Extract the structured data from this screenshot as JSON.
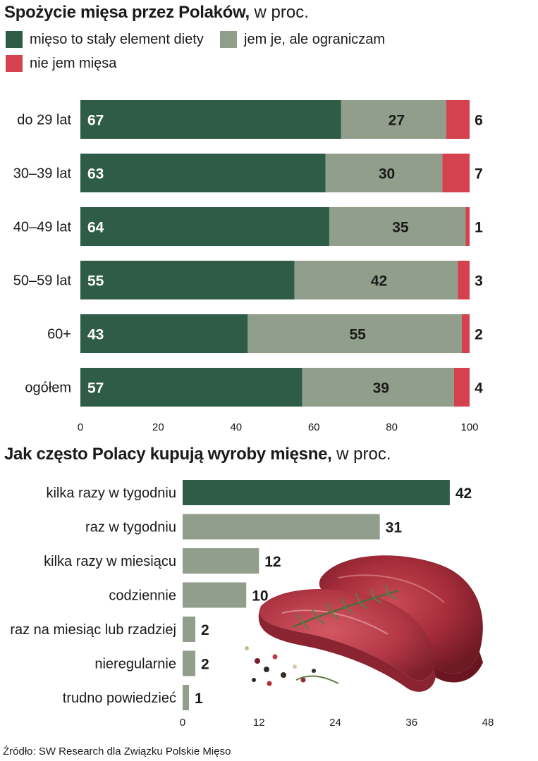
{
  "chart1": {
    "title_bold": "Spożycie mięsa przez Polaków,",
    "title_light": " w proc.",
    "legend": [
      {
        "label": "mięso to stały element diety",
        "color": "#2f5c47"
      },
      {
        "label": "jem je, ale ograniczam",
        "color": "#909e8b"
      },
      {
        "label": "nie jem mięsa",
        "color": "#d4414f"
      }
    ]
  },
  "chart2": {
    "title_bold": "Jak często Polacy kupują wyroby mięsne,",
    "title_light": " w proc."
  },
  "chart_data": [
    {
      "type": "bar",
      "orientation": "horizontal",
      "stacked": true,
      "title": "Spożycie mięsa przez Polaków, w proc.",
      "categories": [
        "do 29 lat",
        "30–39 lat",
        "40–49 lat",
        "50–59 lat",
        "60+",
        "ogółem"
      ],
      "series": [
        {
          "name": "mięso to stały element diety",
          "color": "#2f5c47",
          "values": [
            67,
            63,
            64,
            55,
            43,
            57
          ]
        },
        {
          "name": "jem je, ale ograniczam",
          "color": "#909e8b",
          "values": [
            27,
            30,
            35,
            42,
            55,
            39
          ]
        },
        {
          "name": "nie jem mięsa",
          "color": "#d4414f",
          "values": [
            6,
            7,
            1,
            3,
            2,
            4
          ]
        }
      ],
      "xlim": [
        0,
        100
      ],
      "xticks": [
        0,
        20,
        40,
        60,
        80,
        100
      ]
    },
    {
      "type": "bar",
      "orientation": "horizontal",
      "title": "Jak często Polacy kupują wyroby mięsne, w proc.",
      "categories": [
        "kilka razy w tygodniu",
        "raz w tygodniu",
        "kilka razy w miesiącu",
        "codziennie",
        "raz na miesiąc lub rzadziej",
        "nieregularnie",
        "trudno powiedzieć"
      ],
      "values": [
        42,
        31,
        12,
        10,
        2,
        2,
        1
      ],
      "colors": [
        "#2f5c47",
        "#909e8b",
        "#909e8b",
        "#909e8b",
        "#909e8b",
        "#909e8b",
        "#909e8b"
      ],
      "xlim": [
        0,
        48
      ],
      "xticks": [
        0,
        12,
        24,
        36,
        48
      ]
    }
  ],
  "source": "Źródło: SW Research dla Związku Polskie Mięso"
}
